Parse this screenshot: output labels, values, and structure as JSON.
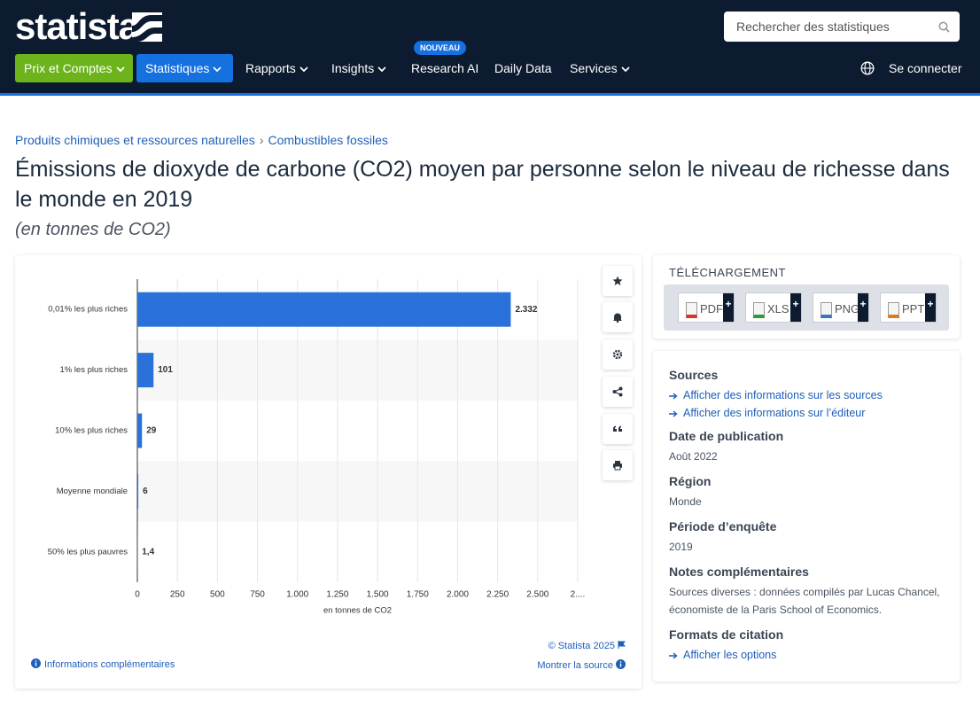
{
  "header": {
    "logo": "statista",
    "search_placeholder": "Rechercher des statistiques",
    "nav": [
      "Prix et Comptes",
      "Statistiques",
      "Rapports",
      "Insights",
      "Research AI",
      "Daily Data",
      "Services"
    ],
    "badge": "NOUVEAU",
    "login": "Se connecter"
  },
  "breadcrumb": {
    "items": [
      "Produits chimiques et ressources naturelles",
      "Combustibles fossiles"
    ],
    "separator": "›"
  },
  "chart_data": {
    "type": "bar",
    "orientation": "horizontal",
    "title": "Émissions de dioxyde de carbone (CO2) moyen par personne selon le niveau de richesse dans le monde en 2019",
    "subtitle": "(en tonnes de CO2)",
    "categories": [
      "0,01% les plus riches",
      "1% les plus riches",
      "10% les plus riches",
      "Moyenne mondiale",
      "50% les plus pauvres"
    ],
    "values": [
      2332,
      101,
      29,
      6,
      1.4
    ],
    "value_labels": [
      "2.332",
      "101",
      "29",
      "6",
      "1,4"
    ],
    "color": "#2a72d9",
    "xlabel": "en tonnes de CO2",
    "xlim": [
      0,
      2750
    ],
    "xticks": [
      0,
      250,
      500,
      750,
      {
        "value": 1000,
        "label": "1.000"
      },
      {
        "value": 1250,
        "label": "1.250"
      },
      {
        "value": 1500,
        "label": "1.500"
      },
      {
        "value": 1750,
        "label": "1.750"
      },
      {
        "value": 2000,
        "label": "2.000"
      },
      {
        "value": 2250,
        "label": "2.250"
      },
      {
        "value": 2500,
        "label": "2.500"
      },
      {
        "value": 2750,
        "label": "2...."
      }
    ],
    "grid": true,
    "copyright": "© Statista 2025"
  },
  "chart_footer": {
    "info": "Informations complémentaires",
    "source": "Montrer la source"
  },
  "download": {
    "title": "TÉLÉCHARGEMENT",
    "formats": [
      "PDF",
      "XLS",
      "PNG",
      "PPT"
    ],
    "plus": "+"
  },
  "details": [
    {
      "heading": "Sources",
      "links": [
        "Afficher des informations sur les sources",
        "Afficher des informations sur l’éditeur"
      ]
    },
    {
      "heading": "Date de publication",
      "text": "Août 2022"
    },
    {
      "heading": "Région",
      "text": "Monde"
    },
    {
      "heading": "Période d’enquête",
      "text": "2019"
    },
    {
      "heading": "Notes complémentaires",
      "text": "Sources diverses : données compilés par Lucas Chancel, économiste de la Paris School of Economics."
    },
    {
      "heading": "Formats de citation",
      "links": [
        "Afficher les options"
      ]
    }
  ]
}
